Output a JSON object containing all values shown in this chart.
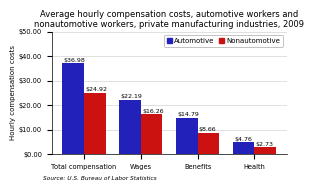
{
  "title": "Average hourly compensation costs, automotive workers and\nnonautomotive workers, private manufacturing industries, 2009",
  "categories": [
    "Total compensation",
    "Wages",
    "Benefits",
    "Health"
  ],
  "automotive": [
    36.98,
    22.19,
    14.79,
    4.76
  ],
  "nonautomotive": [
    24.92,
    16.26,
    8.66,
    2.73
  ],
  "auto_color": "#2222bb",
  "nonauto_color": "#cc1111",
  "ylabel": "Hourly compensation costs",
  "ylim": [
    0,
    50
  ],
  "yticks": [
    0,
    10,
    20,
    30,
    40,
    50
  ],
  "ytick_labels": [
    "$0.00",
    "$10.00",
    "$20.00",
    "$30.00",
    "$40.00",
    "$50.00"
  ],
  "source": "Source: U.S. Bureau of Labor Statistics",
  "legend_labels": [
    "Automotive",
    "Nonautomotive"
  ],
  "bar_width": 0.38,
  "title_fontsize": 6.0,
  "label_fontsize": 5.0,
  "tick_fontsize": 4.8,
  "source_fontsize": 4.2,
  "value_fontsize": 4.5,
  "legend_fontsize": 5.0
}
